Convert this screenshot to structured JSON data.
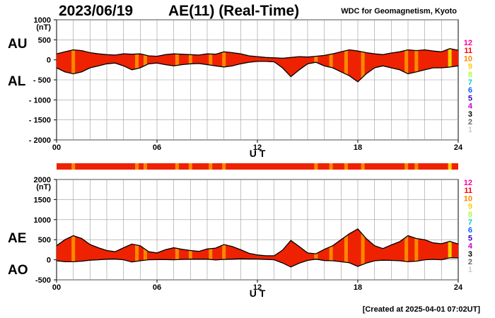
{
  "header": {
    "date": "2023/06/19",
    "title": "AE(11) (Real-Time)",
    "source": "WDC for Geomagnetism, Kyoto"
  },
  "footer": {
    "created": "[Created at 2025-04-01 07:02UT]"
  },
  "colors": {
    "fill": "#ee2200",
    "quality_bar_fill": "#ee2200",
    "station_scale": {
      "12": "#ff0099",
      "11": "#ff0000",
      "10": "#ff8800",
      "9": "#ffcc00",
      "8": "#aaff44",
      "7": "#00cccc",
      "6": "#0066ff",
      "5": "#3300cc",
      "4": "#cc00cc",
      "3": "#000000",
      "2": "#666666",
      "1": "#cccccc"
    }
  },
  "station_scale_labels": [
    "12",
    "11",
    "10",
    "9",
    "8",
    "7",
    "6",
    "5",
    "4",
    "3",
    "2",
    "1"
  ],
  "chart_data": [
    {
      "type": "area",
      "panel": "AU/AL",
      "labels": {
        "upper": "AU",
        "lower": "AL"
      },
      "unit": "(nT)",
      "xlabel": "U T",
      "x_ticks": [
        "00",
        "06",
        "12",
        "18",
        "24"
      ],
      "y_ticks": [
        "1000",
        "500",
        "0",
        "- 500",
        "- 1000",
        "- 1500",
        "- 2000"
      ],
      "ylim": [
        -2000,
        1000
      ],
      "xlim": [
        0,
        24
      ],
      "grid": true,
      "series": [
        {
          "name": "AU",
          "x": [
            0,
            0.5,
            1,
            1.5,
            2,
            2.5,
            3,
            3.5,
            4,
            4.5,
            5,
            5.5,
            6,
            6.5,
            7,
            7.5,
            8,
            8.5,
            9,
            9.5,
            10,
            10.5,
            11,
            11.5,
            12,
            12.5,
            13,
            13.5,
            14,
            14.5,
            15,
            15.5,
            16,
            16.5,
            17,
            17.5,
            18,
            18.5,
            19,
            19.5,
            20,
            20.5,
            21,
            21.5,
            22,
            22.5,
            23,
            23.5,
            24
          ],
          "values": [
            150,
            200,
            250,
            230,
            180,
            150,
            130,
            120,
            150,
            140,
            150,
            100,
            90,
            130,
            150,
            140,
            130,
            120,
            150,
            140,
            200,
            180,
            150,
            100,
            80,
            60,
            50,
            40,
            60,
            80,
            70,
            90,
            110,
            150,
            200,
            250,
            220,
            180,
            150,
            130,
            170,
            200,
            250,
            230,
            250,
            220,
            200,
            280,
            240
          ]
        },
        {
          "name": "AL",
          "x": [
            0,
            0.5,
            1,
            1.5,
            2,
            2.5,
            3,
            3.5,
            4,
            4.5,
            5,
            5.5,
            6,
            6.5,
            7,
            7.5,
            8,
            8.5,
            9,
            9.5,
            10,
            10.5,
            11,
            11.5,
            12,
            12.5,
            13,
            13.5,
            14,
            14.5,
            15,
            15.5,
            16,
            16.5,
            17,
            17.5,
            18,
            18.5,
            19,
            19.5,
            20,
            20.5,
            21,
            21.5,
            22,
            22.5,
            23,
            23.5,
            24
          ],
          "values": [
            -200,
            -300,
            -350,
            -300,
            -200,
            -150,
            -100,
            -80,
            -150,
            -250,
            -200,
            -100,
            -80,
            -120,
            -150,
            -120,
            -100,
            -90,
            -120,
            -150,
            -180,
            -150,
            -100,
            -60,
            -40,
            -40,
            -50,
            -200,
            -420,
            -250,
            -100,
            -60,
            -150,
            -200,
            -300,
            -400,
            -550,
            -350,
            -200,
            -150,
            -200,
            -250,
            -350,
            -300,
            -250,
            -200,
            -200,
            -180,
            -150
          ]
        }
      ],
      "quality_highlights": [
        {
          "x": 1.0,
          "station_count": 10
        },
        {
          "x": 4.8,
          "station_count": 10
        },
        {
          "x": 5.3,
          "station_count": 10
        },
        {
          "x": 7.2,
          "station_count": 10
        },
        {
          "x": 8.0,
          "station_count": 10
        },
        {
          "x": 9.2,
          "station_count": 10
        },
        {
          "x": 10.0,
          "station_count": 10
        },
        {
          "x": 15.5,
          "station_count": 10
        },
        {
          "x": 16.4,
          "station_count": 10
        },
        {
          "x": 17.3,
          "station_count": 10
        },
        {
          "x": 18.3,
          "station_count": 10
        },
        {
          "x": 20.9,
          "station_count": 10
        },
        {
          "x": 21.5,
          "station_count": 10
        },
        {
          "x": 23.5,
          "station_count": 9
        }
      ]
    },
    {
      "type": "area",
      "panel": "AE/AO",
      "labels": {
        "upper": "AE",
        "lower": "AO"
      },
      "unit": "(nT)",
      "xlabel": "U T",
      "x_ticks": [
        "00",
        "06",
        "12",
        "18",
        "24"
      ],
      "y_ticks": [
        "2000",
        "1500",
        "1000",
        "500",
        "0",
        "-500"
      ],
      "ylim": [
        -500,
        2000
      ],
      "xlim": [
        0,
        24
      ],
      "grid": true,
      "series": [
        {
          "name": "AE",
          "x": [
            0,
            0.5,
            1,
            1.5,
            2,
            2.5,
            3,
            3.5,
            4,
            4.5,
            5,
            5.5,
            6,
            6.5,
            7,
            7.5,
            8,
            8.5,
            9,
            9.5,
            10,
            10.5,
            11,
            11.5,
            12,
            12.5,
            13,
            13.5,
            14,
            14.5,
            15,
            15.5,
            16,
            16.5,
            17,
            17.5,
            18,
            18.5,
            19,
            19.5,
            20,
            20.5,
            21,
            21.5,
            22,
            22.5,
            23,
            23.5,
            24
          ],
          "values": [
            350,
            500,
            600,
            530,
            380,
            300,
            230,
            200,
            300,
            390,
            350,
            200,
            170,
            250,
            300,
            260,
            230,
            210,
            270,
            290,
            380,
            330,
            250,
            160,
            120,
            100,
            100,
            240,
            480,
            330,
            170,
            150,
            260,
            350,
            500,
            650,
            770,
            530,
            350,
            280,
            370,
            450,
            600,
            530,
            500,
            420,
            400,
            460,
            390
          ]
        },
        {
          "name": "AO",
          "x": [
            0,
            0.5,
            1,
            1.5,
            2,
            2.5,
            3,
            3.5,
            4,
            4.5,
            5,
            5.5,
            6,
            6.5,
            7,
            7.5,
            8,
            8.5,
            9,
            9.5,
            10,
            10.5,
            11,
            11.5,
            12,
            12.5,
            13,
            13.5,
            14,
            14.5,
            15,
            15.5,
            16,
            16.5,
            17,
            17.5,
            18,
            18.5,
            19,
            19.5,
            20,
            20.5,
            21,
            21.5,
            22,
            22.5,
            23,
            23.5,
            24
          ],
          "values": [
            -25,
            -50,
            -50,
            -35,
            -10,
            0,
            15,
            20,
            0,
            -55,
            -25,
            0,
            5,
            5,
            0,
            10,
            15,
            15,
            15,
            -5,
            10,
            15,
            25,
            20,
            20,
            10,
            0,
            -80,
            -180,
            -85,
            -15,
            15,
            -20,
            -25,
            -50,
            -75,
            -165,
            -85,
            -25,
            -10,
            -15,
            -25,
            -50,
            -35,
            0,
            10,
            0,
            50,
            45
          ]
        }
      ],
      "quality_highlights": [
        {
          "x": 1.0,
          "station_count": 10
        },
        {
          "x": 4.8,
          "station_count": 10
        },
        {
          "x": 5.3,
          "station_count": 10
        },
        {
          "x": 7.2,
          "station_count": 10
        },
        {
          "x": 8.0,
          "station_count": 10
        },
        {
          "x": 9.2,
          "station_count": 10
        },
        {
          "x": 10.0,
          "station_count": 10
        },
        {
          "x": 15.5,
          "station_count": 10
        },
        {
          "x": 16.4,
          "station_count": 10
        },
        {
          "x": 17.3,
          "station_count": 10
        },
        {
          "x": 18.3,
          "station_count": 10
        },
        {
          "x": 20.9,
          "station_count": 10
        },
        {
          "x": 21.5,
          "station_count": 10
        },
        {
          "x": 23.5,
          "station_count": 9
        }
      ]
    }
  ]
}
